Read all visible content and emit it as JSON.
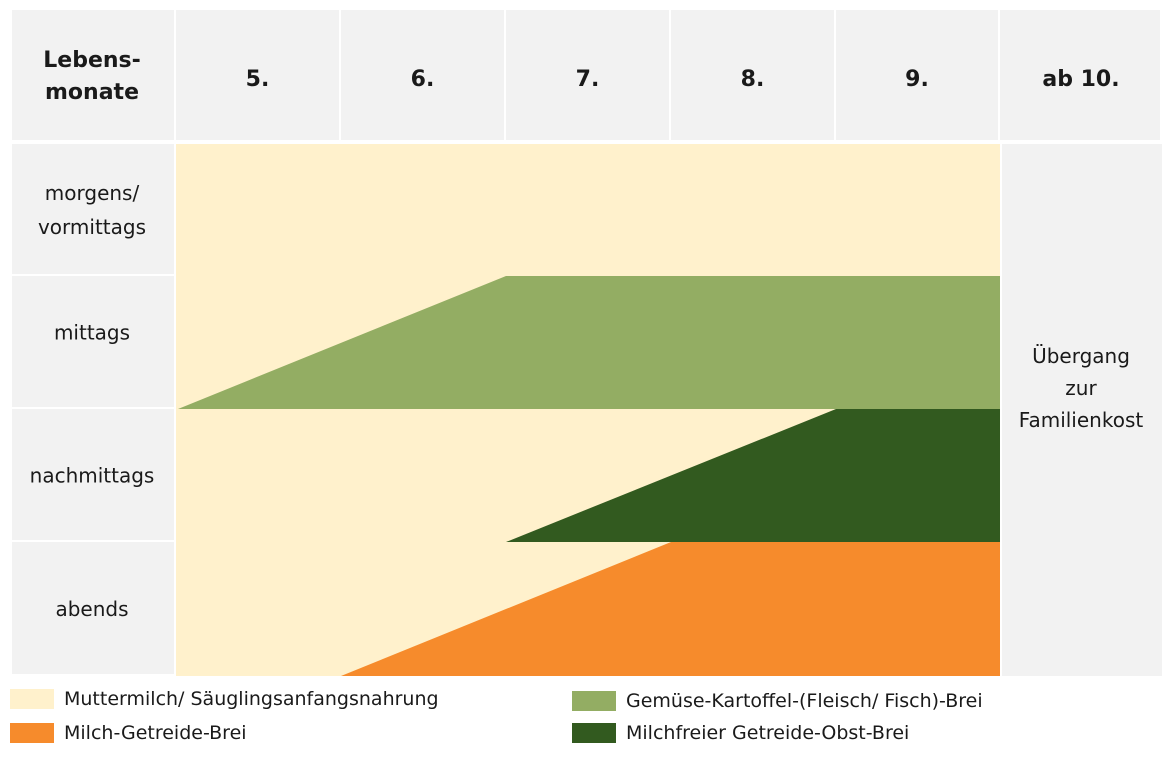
{
  "header": {
    "row_label_lines": [
      "Lebens-",
      "monate"
    ],
    "months": [
      "5.",
      "6.",
      "7.",
      "8.",
      "9."
    ],
    "last_column": "ab 10."
  },
  "rows": [
    {
      "label_lines": [
        "morgens/",
        "vormittags"
      ]
    },
    {
      "label_lines": [
        "mittags"
      ]
    },
    {
      "label_lines": [
        "nachmittags"
      ]
    },
    {
      "label_lines": [
        "abends"
      ]
    }
  ],
  "transition": {
    "lines": [
      "Übergang",
      "zur",
      "Familienkost"
    ]
  },
  "colors": {
    "header_bg": "#f2f2f2",
    "grid_line": "#ffffff",
    "milk": "#fff1cc",
    "vegetable": "#93ad63",
    "cereal_fruit": "#325a1f",
    "milk_cereal": "#f68b2c"
  },
  "foods": [
    {
      "key": "milk",
      "label": "Muttermilch/ Säuglingsanfangsnahrung",
      "color": "#fff1cc"
    },
    {
      "key": "milk_cereal",
      "label": "Milch-Getreide-Brei",
      "color": "#f68b2c"
    },
    {
      "key": "vegetable",
      "label": "Gemüse-Kartoffel-(Fleisch/  Fisch)-Brei",
      "color": "#93ad63"
    },
    {
      "key": "cereal_fruit",
      "label": "Milchfreier Getreide-Obst-Brei",
      "color": "#325a1f"
    }
  ]
}
